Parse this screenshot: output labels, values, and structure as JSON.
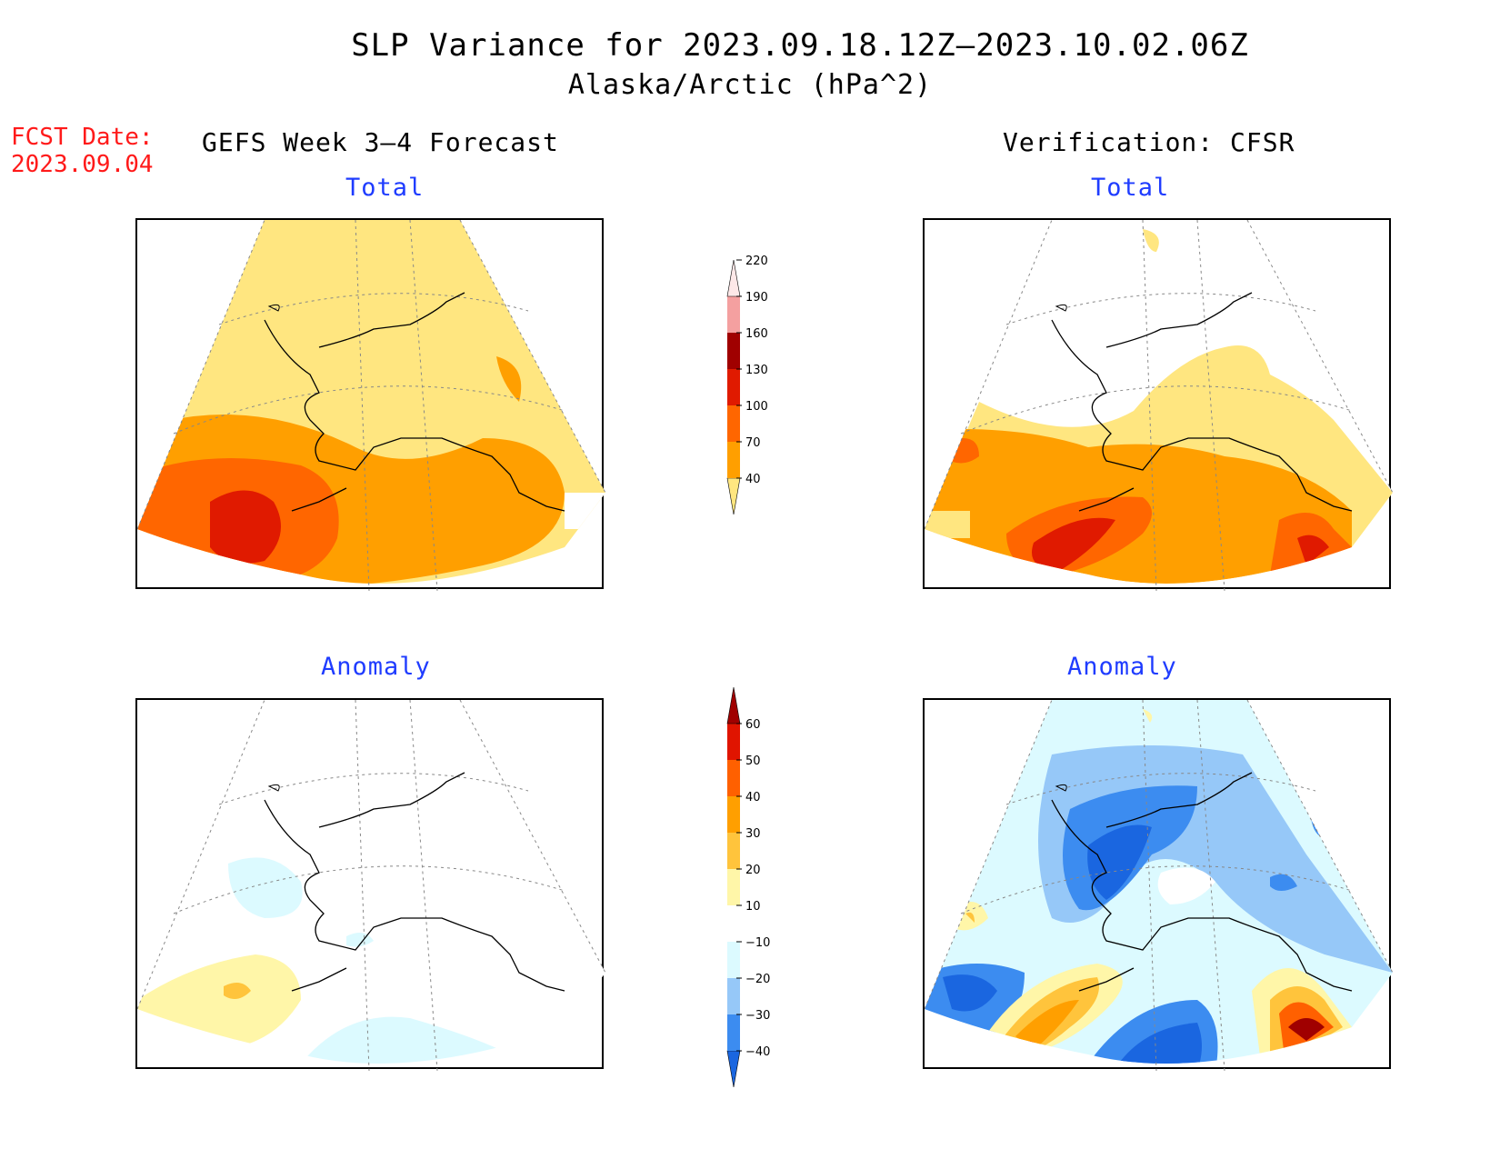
{
  "title": {
    "line1": "SLP Variance for 2023.09.18.12Z–2023.10.02.06Z",
    "line2": "Alaska/Arctic (hPa^2)"
  },
  "forecast_date": {
    "label": "FCST Date:",
    "value": "2023.09.04"
  },
  "columns": {
    "left": "GEFS Week 3–4 Forecast",
    "right": "Verification: CFSR"
  },
  "panels": {
    "gefs_total": "Total",
    "cfsr_total": "Total",
    "gefs_anomaly": "Anomaly",
    "cfsr_anomaly": "Anomaly"
  },
  "colorbars": {
    "total": {
      "levels": [
        "40",
        "70",
        "100",
        "130",
        "160",
        "190",
        "220"
      ],
      "colors": [
        "#ffe680",
        "#ff9f00",
        "#ff6600",
        "#e01a00",
        "#a00000",
        "#f4a0a0",
        "#fde8e8"
      ]
    },
    "anomaly": {
      "levels": [
        "−40",
        "−30",
        "−20",
        "−10",
        "10",
        "20",
        "30",
        "40",
        "50",
        "60"
      ],
      "colors": [
        "#1a66e0",
        "#3c8cf0",
        "#96c8f8",
        "#dcfaff",
        "#ffffff",
        "#fff6a8",
        "#ffc43c",
        "#ff9f00",
        "#ff6000",
        "#e01400",
        "#a00000"
      ]
    }
  },
  "colors": {
    "title_accent": "#1f3cff",
    "forecast_date": "#ff1a1a"
  }
}
